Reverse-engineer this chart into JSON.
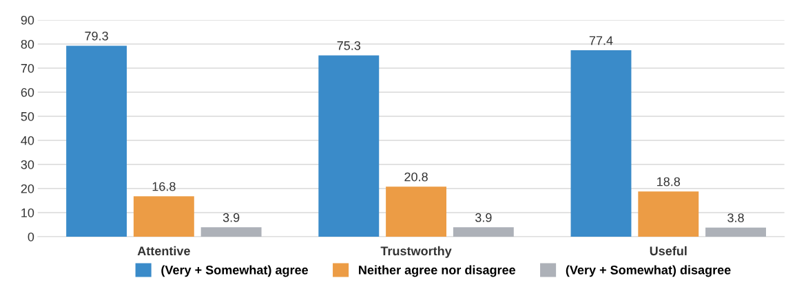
{
  "chart_data": {
    "type": "bar",
    "categories": [
      "Attentive",
      "Trustworthy",
      "Useful"
    ],
    "series": [
      {
        "name": "(Very + Somewhat) agree",
        "color": "#3a8bc9",
        "values": [
          79.3,
          75.3,
          77.4
        ]
      },
      {
        "name": "Neither agree nor disagree",
        "color": "#ec9c45",
        "values": [
          16.8,
          20.8,
          18.8
        ]
      },
      {
        "name": "(Very + Somewhat) disagree",
        "color": "#adb1b8",
        "values": [
          3.9,
          3.9,
          3.8
        ]
      }
    ],
    "ylim": [
      0,
      90
    ],
    "yticks": [
      0,
      10,
      20,
      30,
      40,
      50,
      60,
      70,
      80,
      90
    ],
    "grid": "y",
    "legend": "bottom",
    "data_labels": true
  }
}
